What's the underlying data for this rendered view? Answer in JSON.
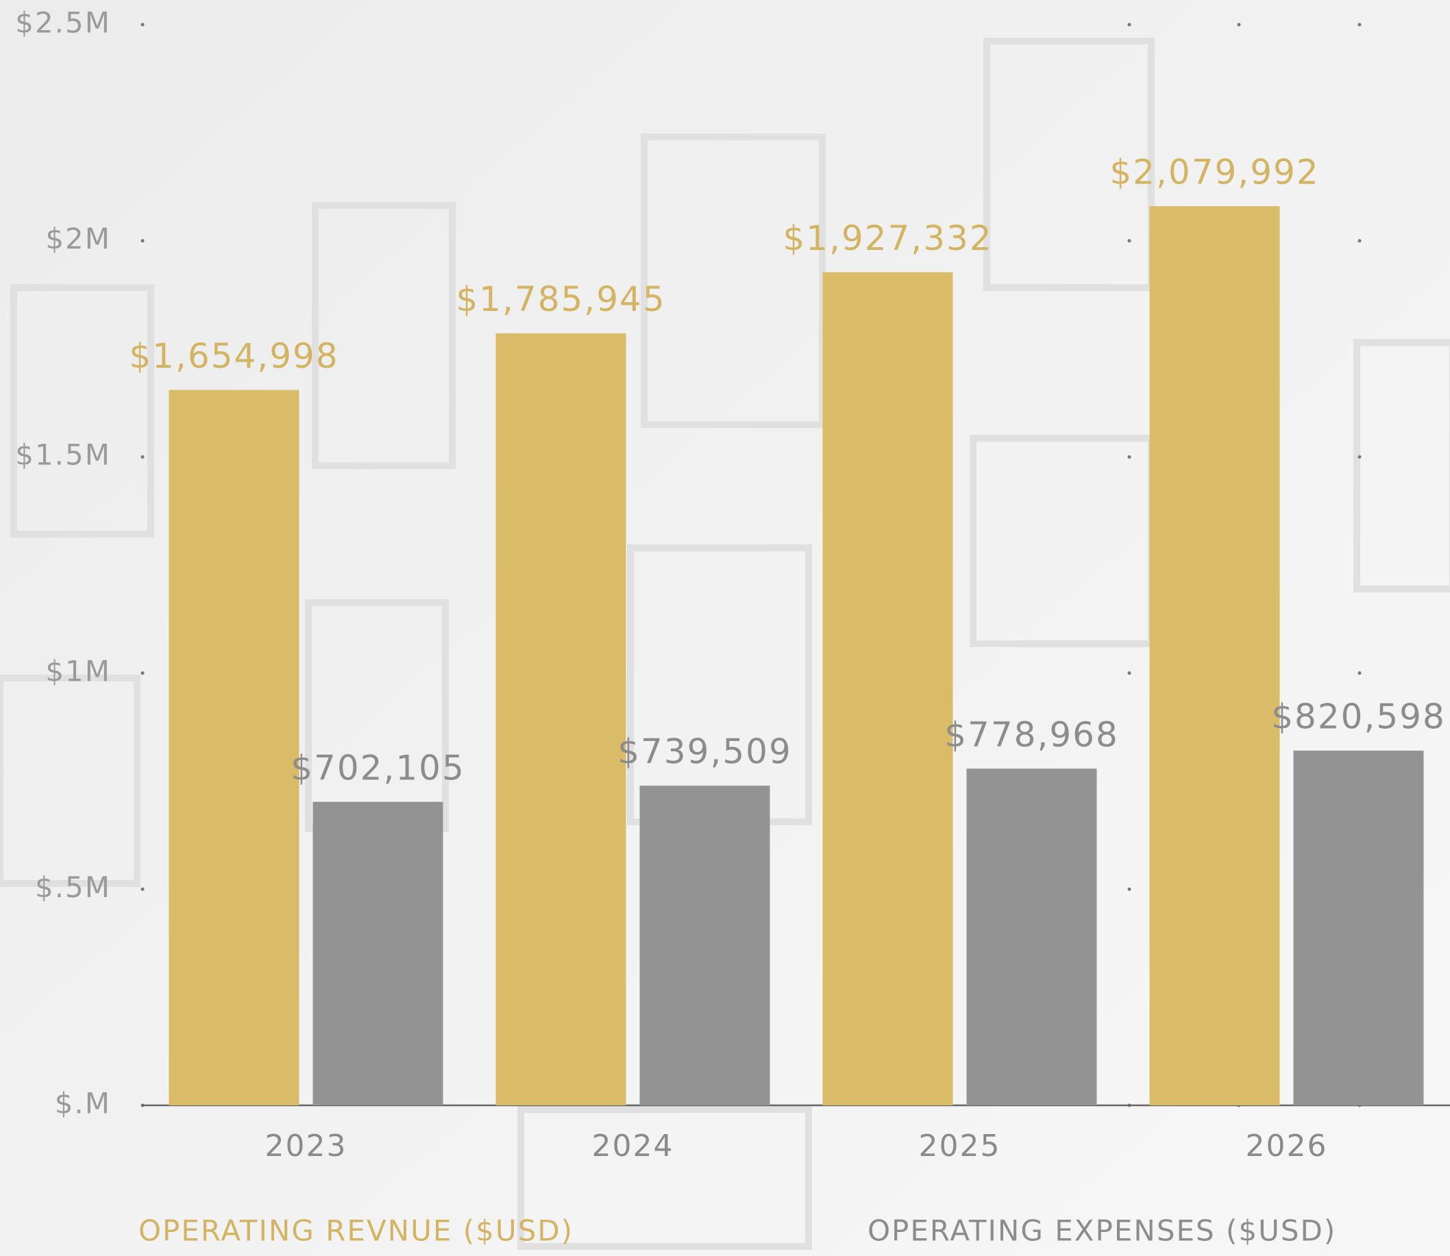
{
  "chart_data": {
    "type": "bar",
    "categories": [
      "2023",
      "2024",
      "2025",
      "2026"
    ],
    "series": [
      {
        "name": "OPERATING REVNUE ($USD)",
        "color": "#d9bb68",
        "label_color": "#d2b463",
        "values": [
          1654998,
          1785945,
          1927332,
          2079992
        ],
        "value_labels": [
          "$1,654,998",
          "$1,785,945",
          "$1,927,332",
          "$2,079,992"
        ]
      },
      {
        "name": "OPERATING EXPENSES ($USD)",
        "color": "#939393",
        "label_color": "#8c8c8c",
        "values": [
          702105,
          739509,
          778968,
          820598
        ],
        "value_labels": [
          "$702,105",
          "$739,509",
          "$778,968",
          "$820,598"
        ]
      }
    ],
    "ylim": [
      0,
      2500000
    ],
    "yticks": [
      {
        "value": 0,
        "label": "$.M"
      },
      {
        "value": 500000,
        "label": "$.5M"
      },
      {
        "value": 1000000,
        "label": "$1M"
      },
      {
        "value": 1500000,
        "label": "$1.5M"
      },
      {
        "value": 2000000,
        "label": "$2M"
      },
      {
        "value": 2500000,
        "label": "$2.5M"
      }
    ]
  }
}
